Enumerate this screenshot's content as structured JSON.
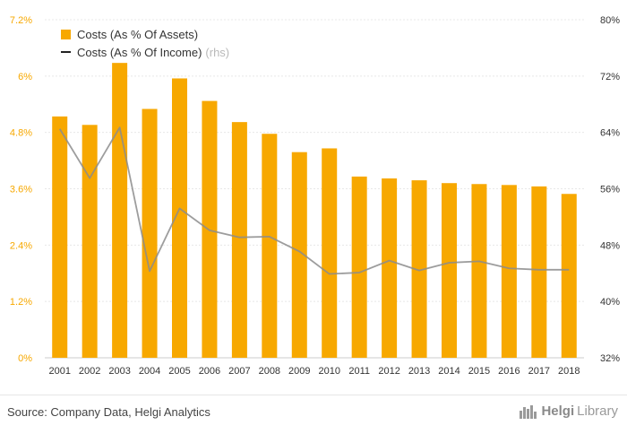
{
  "chart_data": {
    "type": "bar",
    "categories": [
      "2001",
      "2002",
      "2003",
      "2004",
      "2005",
      "2006",
      "2007",
      "2008",
      "2009",
      "2010",
      "2011",
      "2012",
      "2013",
      "2014",
      "2015",
      "2016",
      "2017",
      "2018"
    ],
    "series": [
      {
        "name": "Costs (As % Of Assets)",
        "type": "bar",
        "axis": "left",
        "color": "#F7A800",
        "values": [
          5.14,
          4.96,
          6.28,
          5.3,
          5.95,
          5.47,
          5.02,
          4.77,
          4.38,
          4.46,
          3.86,
          3.82,
          3.78,
          3.72,
          3.7,
          3.68,
          3.65,
          3.49
        ]
      },
      {
        "name": "Costs (As % Of Income)",
        "type": "line",
        "axis": "right",
        "color": "#999999",
        "values": [
          64.5,
          57.5,
          64.7,
          44.3,
          53.2,
          50.1,
          49.1,
          49.2,
          47.1,
          43.9,
          44.1,
          45.8,
          44.4,
          45.5,
          45.7,
          44.7,
          44.5,
          44.5
        ]
      }
    ],
    "left_axis": {
      "ticks": [
        "0%",
        "1.2%",
        "2.4%",
        "3.6%",
        "4.8%",
        "6%",
        "7.2%"
      ],
      "range": [
        0,
        7.2
      ],
      "tick_color": "#F7A800"
    },
    "right_axis": {
      "ticks": [
        "32%",
        "40%",
        "48%",
        "56%",
        "64%",
        "72%",
        "80%"
      ],
      "range": [
        32,
        80
      ]
    },
    "legend": {
      "position": "top-left",
      "bar_label": "Costs (As % Of Assets)",
      "line_label": "Costs (As % Of Income)",
      "line_suffix": "(rhs)"
    },
    "grid": true
  },
  "footer": {
    "source": "Source: Company Data, Helgi Analytics",
    "brand_bold": "Helgi",
    "brand_regular": "Library"
  }
}
